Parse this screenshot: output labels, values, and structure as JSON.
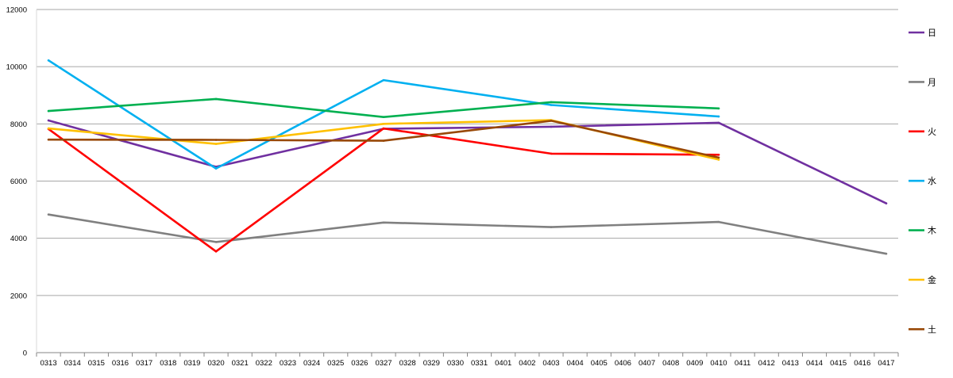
{
  "chart_data": {
    "type": "line",
    "title": "",
    "xlabel": "",
    "ylabel": "",
    "ylim": [
      0,
      12000
    ],
    "yticks": [
      0,
      2000,
      4000,
      6000,
      8000,
      10000,
      12000
    ],
    "grid": true,
    "legend_position": "right",
    "categories": [
      "0313",
      "0314",
      "0315",
      "0316",
      "0317",
      "0318",
      "0319",
      "0320",
      "0321",
      "0322",
      "0323",
      "0324",
      "0325",
      "0326",
      "0327",
      "0328",
      "0329",
      "0330",
      "0331",
      "0401",
      "0402",
      "0403",
      "0404",
      "0405",
      "0406",
      "0407",
      "0408",
      "0409",
      "0410",
      "0411",
      "0412",
      "0413",
      "0414",
      "0415",
      "0416",
      "0417"
    ],
    "series": [
      {
        "name": "日",
        "color": "#7030a0",
        "values": [
          8120,
          null,
          null,
          null,
          null,
          null,
          null,
          6500,
          null,
          null,
          null,
          null,
          null,
          null,
          7830,
          null,
          null,
          null,
          null,
          null,
          null,
          7900,
          null,
          null,
          null,
          null,
          null,
          null,
          8040,
          null,
          null,
          null,
          null,
          null,
          null,
          5220
        ]
      },
      {
        "name": "月",
        "color": "#808080",
        "values": [
          4830,
          null,
          null,
          null,
          null,
          null,
          null,
          3870,
          null,
          null,
          null,
          null,
          null,
          null,
          4550,
          null,
          null,
          null,
          null,
          null,
          null,
          4390,
          null,
          null,
          null,
          null,
          null,
          null,
          4570,
          null,
          null,
          null,
          null,
          null,
          null,
          3460
        ]
      },
      {
        "name": "火",
        "color": "#ff0000",
        "values": [
          7820,
          null,
          null,
          null,
          null,
          null,
          null,
          3540,
          null,
          null,
          null,
          null,
          null,
          null,
          7840,
          null,
          null,
          null,
          null,
          null,
          null,
          6960,
          null,
          null,
          null,
          null,
          null,
          null,
          6920,
          null,
          null,
          null,
          null,
          null,
          null,
          null
        ]
      },
      {
        "name": "水",
        "color": "#00b0f0",
        "values": [
          10220,
          null,
          null,
          null,
          null,
          null,
          null,
          6440,
          null,
          null,
          null,
          null,
          null,
          null,
          9530,
          null,
          null,
          null,
          null,
          null,
          null,
          8660,
          null,
          null,
          null,
          null,
          null,
          null,
          8260,
          null,
          null,
          null,
          null,
          null,
          null,
          null
        ]
      },
      {
        "name": "木",
        "color": "#00b050",
        "values": [
          8450,
          null,
          null,
          null,
          null,
          null,
          null,
          8870,
          null,
          null,
          null,
          null,
          null,
          null,
          8240,
          null,
          null,
          null,
          null,
          null,
          null,
          8760,
          null,
          null,
          null,
          null,
          null,
          null,
          8540,
          null,
          null,
          null,
          null,
          null,
          null,
          null
        ]
      },
      {
        "name": "金",
        "color": "#ffc000",
        "values": [
          7840,
          null,
          null,
          null,
          null,
          null,
          null,
          7300,
          null,
          null,
          null,
          null,
          null,
          null,
          8000,
          null,
          null,
          null,
          null,
          null,
          null,
          8130,
          null,
          null,
          null,
          null,
          null,
          null,
          6750,
          null,
          null,
          null,
          null,
          null,
          null,
          null
        ]
      },
      {
        "name": "土",
        "color": "#984807",
        "values": [
          7450,
          null,
          null,
          null,
          null,
          null,
          null,
          7440,
          null,
          null,
          null,
          null,
          null,
          null,
          7410,
          null,
          null,
          null,
          null,
          null,
          null,
          8110,
          null,
          null,
          null,
          null,
          null,
          null,
          6820,
          null,
          null,
          null,
          null,
          null,
          null,
          null
        ]
      }
    ]
  }
}
